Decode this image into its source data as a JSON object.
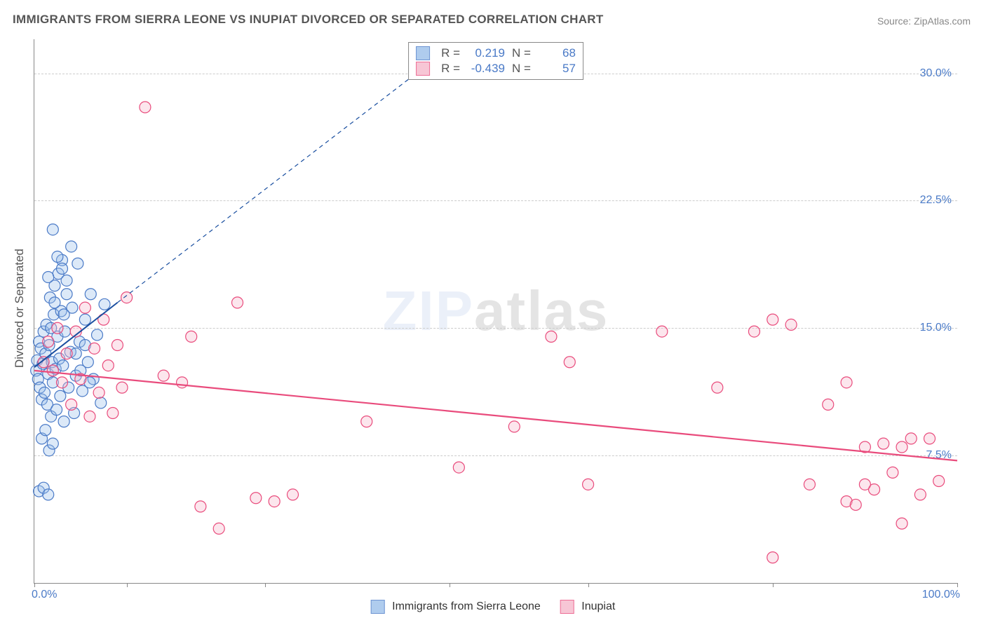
{
  "title": "IMMIGRANTS FROM SIERRA LEONE VS INUPIAT DIVORCED OR SEPARATED CORRELATION CHART",
  "source_label": "Source: ",
  "source_name": "ZipAtlas.com",
  "y_axis_label": "Divorced or Separated",
  "watermark_a": "ZIP",
  "watermark_b": "atlas",
  "chart": {
    "type": "scatter",
    "xlim": [
      0,
      100
    ],
    "ylim": [
      0,
      32
    ],
    "y_ticks": [
      7.5,
      15.0,
      22.5,
      30.0
    ],
    "y_tick_labels": [
      "7.5%",
      "15.0%",
      "22.5%",
      "30.0%"
    ],
    "x_ticks": [
      0,
      10,
      25,
      45,
      60,
      80,
      100
    ],
    "x_min_label": "0.0%",
    "x_max_label": "100.0%",
    "background_color": "#ffffff",
    "grid_color": "#cccccc",
    "axis_color": "#888888",
    "marker_radius": 8,
    "marker_stroke_width": 1.2,
    "marker_fill_opacity": 0.35,
    "series": [
      {
        "name": "Immigrants from Sierra Leone",
        "color_stroke": "#4a7ac7",
        "color_fill": "#9cc0ea",
        "r_value": "0.219",
        "n_value": "68",
        "trend": {
          "x1": 0,
          "y1": 12.7,
          "x2": 9,
          "y2": 16.5,
          "dash_x2": 45,
          "dash_y2": 31.5,
          "color": "#1a4fa0",
          "width": 2
        },
        "points": [
          [
            0.2,
            12.5
          ],
          [
            0.3,
            13.1
          ],
          [
            0.4,
            12.0
          ],
          [
            0.5,
            14.2
          ],
          [
            0.6,
            11.5
          ],
          [
            0.7,
            13.8
          ],
          [
            0.8,
            10.8
          ],
          [
            0.9,
            12.9
          ],
          [
            1.0,
            14.8
          ],
          [
            1.1,
            11.2
          ],
          [
            1.2,
            13.5
          ],
          [
            1.3,
            15.2
          ],
          [
            1.4,
            10.5
          ],
          [
            1.5,
            12.3
          ],
          [
            1.6,
            14.0
          ],
          [
            1.7,
            16.8
          ],
          [
            1.8,
            9.8
          ],
          [
            1.9,
            13.0
          ],
          [
            2.0,
            11.8
          ],
          [
            2.1,
            15.8
          ],
          [
            2.2,
            17.5
          ],
          [
            2.3,
            12.6
          ],
          [
            2.4,
            10.2
          ],
          [
            2.5,
            14.5
          ],
          [
            2.6,
            18.2
          ],
          [
            2.7,
            13.2
          ],
          [
            2.8,
            11.0
          ],
          [
            2.9,
            16.0
          ],
          [
            3.0,
            19.0
          ],
          [
            3.1,
            12.8
          ],
          [
            3.2,
            9.5
          ],
          [
            3.3,
            14.8
          ],
          [
            3.5,
            17.8
          ],
          [
            3.7,
            11.5
          ],
          [
            3.9,
            13.6
          ],
          [
            4.1,
            16.2
          ],
          [
            4.3,
            10.0
          ],
          [
            4.5,
            12.2
          ],
          [
            4.7,
            18.8
          ],
          [
            4.9,
            14.2
          ],
          [
            5.2,
            11.3
          ],
          [
            5.5,
            15.5
          ],
          [
            5.8,
            13.0
          ],
          [
            6.1,
            17.0
          ],
          [
            6.4,
            12.0
          ],
          [
            6.8,
            14.6
          ],
          [
            7.2,
            10.6
          ],
          [
            7.6,
            16.4
          ],
          [
            0.8,
            8.5
          ],
          [
            1.2,
            9.0
          ],
          [
            1.6,
            7.8
          ],
          [
            2.0,
            8.2
          ],
          [
            0.5,
            5.4
          ],
          [
            1.0,
            5.6
          ],
          [
            1.5,
            5.2
          ],
          [
            2.0,
            20.8
          ],
          [
            2.5,
            19.2
          ],
          [
            3.0,
            18.5
          ],
          [
            3.5,
            17.0
          ],
          [
            4.0,
            19.8
          ],
          [
            1.5,
            18.0
          ],
          [
            2.2,
            16.5
          ],
          [
            1.8,
            15.0
          ],
          [
            3.2,
            15.8
          ],
          [
            4.5,
            13.5
          ],
          [
            5.0,
            12.5
          ],
          [
            5.5,
            14.0
          ],
          [
            6.0,
            11.8
          ]
        ]
      },
      {
        "name": "Inupiat",
        "color_stroke": "#e94b7c",
        "color_fill": "#f6b8cb",
        "r_value": "-0.439",
        "n_value": "57",
        "trend": {
          "x1": 0,
          "y1": 12.5,
          "x2": 100,
          "y2": 7.2,
          "color": "#e94b7c",
          "width": 2.2
        },
        "points": [
          [
            1.0,
            13.0
          ],
          [
            1.5,
            14.2
          ],
          [
            2.0,
            12.5
          ],
          [
            2.5,
            15.0
          ],
          [
            3.0,
            11.8
          ],
          [
            3.5,
            13.5
          ],
          [
            4.0,
            10.5
          ],
          [
            4.5,
            14.8
          ],
          [
            5.0,
            12.0
          ],
          [
            5.5,
            16.2
          ],
          [
            6.0,
            9.8
          ],
          [
            6.5,
            13.8
          ],
          [
            7.0,
            11.2
          ],
          [
            7.5,
            15.5
          ],
          [
            8.0,
            12.8
          ],
          [
            8.5,
            10.0
          ],
          [
            9.0,
            14.0
          ],
          [
            9.5,
            11.5
          ],
          [
            10.0,
            16.8
          ],
          [
            12.0,
            28.0
          ],
          [
            14.0,
            12.2
          ],
          [
            16.0,
            11.8
          ],
          [
            17.0,
            14.5
          ],
          [
            18.0,
            4.5
          ],
          [
            20.0,
            3.2
          ],
          [
            22.0,
            16.5
          ],
          [
            24.0,
            5.0
          ],
          [
            26.0,
            4.8
          ],
          [
            28.0,
            5.2
          ],
          [
            36.0,
            9.5
          ],
          [
            46.0,
            6.8
          ],
          [
            52.0,
            9.2
          ],
          [
            56.0,
            14.5
          ],
          [
            58.0,
            13.0
          ],
          [
            60.0,
            5.8
          ],
          [
            68.0,
            14.8
          ],
          [
            74.0,
            11.5
          ],
          [
            78.0,
            14.8
          ],
          [
            80.0,
            15.5
          ],
          [
            80.0,
            1.5
          ],
          [
            82.0,
            15.2
          ],
          [
            84.0,
            5.8
          ],
          [
            86.0,
            10.5
          ],
          [
            88.0,
            11.8
          ],
          [
            88.0,
            4.8
          ],
          [
            89.0,
            4.6
          ],
          [
            90.0,
            8.0
          ],
          [
            91.0,
            5.5
          ],
          [
            92.0,
            8.2
          ],
          [
            93.0,
            6.5
          ],
          [
            94.0,
            3.5
          ],
          [
            95.0,
            8.5
          ],
          [
            96.0,
            5.2
          ],
          [
            97.0,
            8.5
          ],
          [
            98.0,
            6.0
          ],
          [
            94.0,
            8.0
          ],
          [
            90.0,
            5.8
          ]
        ]
      }
    ]
  },
  "legend": {
    "series1": "Immigrants from Sierra Leone",
    "series2": "Inupiat"
  },
  "stats_labels": {
    "r": "R  =",
    "n": "N  ="
  }
}
